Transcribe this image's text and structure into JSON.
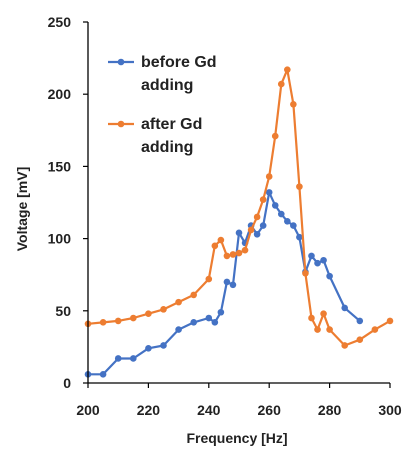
{
  "chart_data": {
    "type": "line",
    "title": "",
    "xlabel": "Frequency [Hz]",
    "ylabel": "Voltage [mV]",
    "xlim": [
      200,
      300
    ],
    "ylim": [
      0,
      250
    ],
    "x_ticks": [
      200,
      220,
      240,
      260,
      280,
      300
    ],
    "y_ticks": [
      0,
      50,
      100,
      150,
      200,
      250
    ],
    "grid": false,
    "legend_position": "top-left",
    "series": [
      {
        "name": "before Gd adding",
        "color": "#4472C4",
        "x": [
          200,
          205,
          210,
          215,
          220,
          225,
          230,
          235,
          240,
          242,
          244,
          246,
          248,
          250,
          252,
          254,
          256,
          258,
          260,
          262,
          264,
          266,
          268,
          270,
          272,
          274,
          276,
          278,
          280,
          285,
          290
        ],
        "y": [
          6,
          6,
          17,
          17,
          24,
          26,
          37,
          42,
          45,
          42,
          49,
          70,
          68,
          104,
          97,
          109,
          103,
          109,
          132,
          123,
          117,
          112,
          109,
          101,
          77,
          88,
          83,
          85,
          74,
          52,
          43
        ]
      },
      {
        "name": "after Gd adding",
        "color": "#ED7D31",
        "x": [
          200,
          205,
          210,
          215,
          220,
          225,
          230,
          235,
          240,
          242,
          244,
          246,
          248,
          250,
          252,
          254,
          256,
          258,
          260,
          262,
          264,
          266,
          268,
          270,
          272,
          274,
          276,
          278,
          280,
          285,
          290,
          295,
          300
        ],
        "y": [
          41,
          42,
          43,
          45,
          48,
          51,
          56,
          61,
          72,
          95,
          99,
          88,
          89,
          90,
          92,
          106,
          115,
          127,
          143,
          171,
          207,
          217,
          193,
          136,
          76,
          45,
          37,
          48,
          37,
          26,
          30,
          37,
          43
        ]
      }
    ]
  }
}
